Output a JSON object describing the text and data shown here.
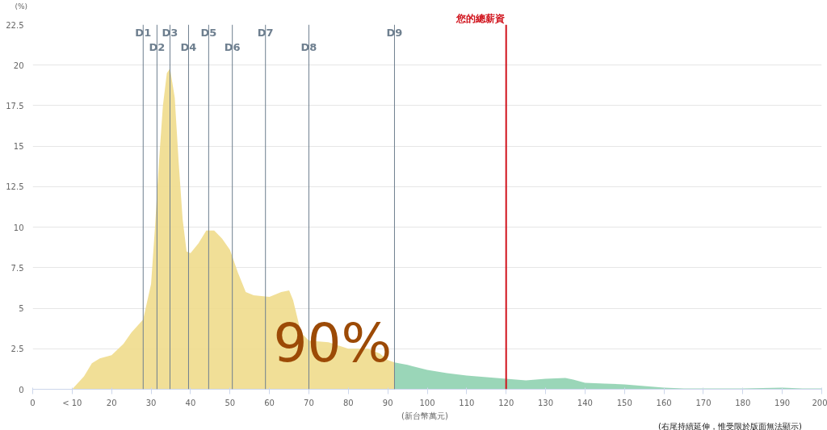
{
  "chart_data": {
    "type": "area",
    "xlabel": "(新台幣萬元)",
    "ylabel": "(%)",
    "annotations": [
      "90%",
      "(右尾持續延伸，惟受限於版面無法顯示)"
    ],
    "series": [
      {
        "color": "#f0dc8c",
        "x": [
          10,
          13,
          15,
          17,
          20,
          23,
          25,
          28,
          30,
          31,
          32,
          33,
          34,
          34.8,
          36,
          37,
          38,
          39,
          40,
          42,
          44,
          46,
          48,
          50,
          52,
          54,
          56,
          60,
          63,
          65,
          66,
          68,
          70,
          75,
          80,
          85,
          88,
          90,
          91.7
        ],
        "values": [
          0,
          0.8,
          1.6,
          1.9,
          2.1,
          2.8,
          3.5,
          4.3,
          6.5,
          10,
          14,
          17.5,
          19.5,
          19.8,
          18,
          14,
          10.5,
          8.5,
          8.4,
          9.0,
          9.8,
          9.8,
          9.3,
          8.6,
          7.2,
          6,
          5.8,
          5.7,
          6,
          6.1,
          5.5,
          3.5,
          3.0,
          2.9,
          2.5,
          2.5,
          2.2,
          1.8,
          1.65
        ]
      },
      {
        "color": "#8fd1b0",
        "x": [
          91.7,
          95,
          100,
          105,
          110,
          115,
          120,
          125,
          130,
          135,
          137,
          140,
          145,
          150,
          155,
          160,
          165,
          170,
          180,
          190,
          195,
          200
        ],
        "values": [
          1.65,
          1.5,
          1.2,
          1.0,
          0.85,
          0.75,
          0.65,
          0.55,
          0.65,
          0.7,
          0.6,
          0.4,
          0.35,
          0.3,
          0.2,
          0.1,
          0.05,
          0.05,
          0.05,
          0.1,
          0.05,
          0.05
        ]
      }
    ],
    "xlim": [
      0,
      200
    ],
    "xticks": [
      0,
      {
        "value": 10,
        "label": "< 10"
      },
      20,
      30,
      40,
      50,
      60,
      70,
      80,
      90,
      100,
      110,
      120,
      130,
      140,
      150,
      160,
      170,
      180,
      190,
      200
    ],
    "ylim": [
      0,
      22.5
    ],
    "yticks": [
      0,
      2.5,
      5,
      7.5,
      10,
      12.5,
      15,
      17.5,
      20,
      22.5
    ],
    "grid": "y",
    "ref_lines": [
      {
        "axis": "x",
        "value": 28.0,
        "label": "D1",
        "color": "#6e7f8f",
        "line_style": "solid"
      },
      {
        "axis": "x",
        "value": 31.5,
        "label": "D2",
        "color": "#6e7f8f",
        "line_style": "solid"
      },
      {
        "axis": "x",
        "value": 34.8,
        "label": "D3",
        "color": "#6e7f8f",
        "line_style": "solid"
      },
      {
        "axis": "x",
        "value": 39.5,
        "label": "D4",
        "color": "#6e7f8f",
        "line_style": "solid"
      },
      {
        "axis": "x",
        "value": 44.6,
        "label": "D5",
        "color": "#6e7f8f",
        "line_style": "solid"
      },
      {
        "axis": "x",
        "value": 50.6,
        "label": "D6",
        "color": "#6e7f8f",
        "line_style": "solid"
      },
      {
        "axis": "x",
        "value": 59.0,
        "label": "D7",
        "color": "#6e7f8f",
        "line_style": "solid"
      },
      {
        "axis": "x",
        "value": 70.0,
        "label": "D8",
        "color": "#6e7f8f",
        "line_style": "solid"
      },
      {
        "axis": "x",
        "value": 91.7,
        "label": "D9",
        "color": "#6e7f8f",
        "line_style": "solid"
      },
      {
        "axis": "x",
        "value": 120.0,
        "label": "您的總薪資",
        "color": "#d0121b",
        "line_style": "solid"
      }
    ]
  }
}
